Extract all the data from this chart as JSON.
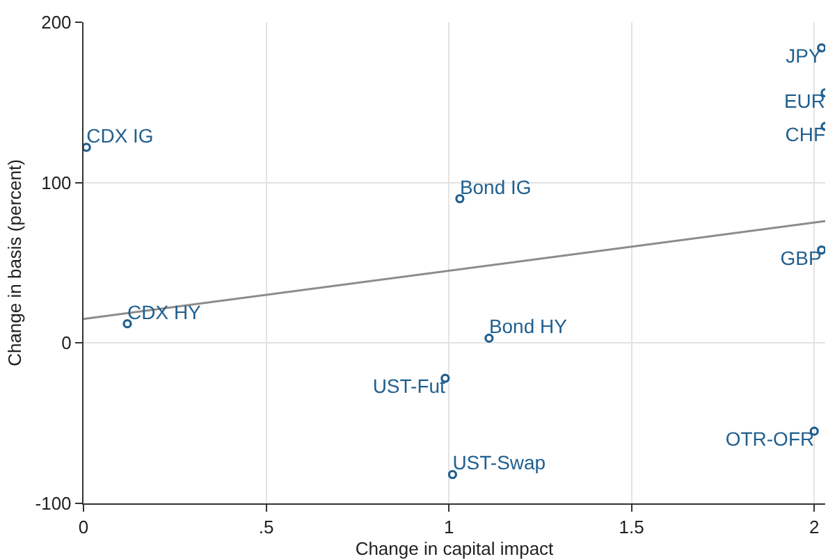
{
  "chart_data": {
    "type": "scatter",
    "xlabel": "Change in capital impact",
    "ylabel": "Change in basis (percent)",
    "xlim": [
      0,
      2.03
    ],
    "ylim": [
      -100,
      200
    ],
    "xticks": [
      0,
      {
        "value": 0.5,
        "label": ".5"
      },
      1,
      1.5,
      2
    ],
    "yticks": [
      -100,
      0,
      100,
      200
    ],
    "grid": true,
    "marker": "circle",
    "series": [
      {
        "color": "#1f5f8f",
        "x": [
          0.008,
          0.12,
          1.03,
          1.11,
          0.99,
          1.01,
          2.02,
          2.03,
          2.03,
          2.02,
          2.0
        ],
        "values": [
          122,
          12,
          90,
          3,
          -22,
          -82,
          184,
          156,
          135,
          58,
          -55
        ]
      },
      {
        "type": "line",
        "color": "#8c8c8c",
        "marker": "none",
        "x": [
          0,
          2.03
        ],
        "values": [
          15,
          76
        ]
      }
    ],
    "annotations": [
      {
        "text": "CDX IG",
        "x": 0.008,
        "y": 122
      },
      {
        "text": "CDX HY",
        "x": 0.12,
        "y": 12
      },
      {
        "text": "Bond IG",
        "x": 1.03,
        "y": 90
      },
      {
        "text": "Bond HY",
        "x": 1.11,
        "y": 3
      },
      {
        "text": "UST-Fut",
        "x": 0.99,
        "y": -22
      },
      {
        "text": "UST-Swap",
        "x": 1.01,
        "y": -82
      },
      {
        "text": "JPY",
        "x": 2.02,
        "y": 184
      },
      {
        "text": "EUR",
        "x": 2.03,
        "y": 156
      },
      {
        "text": "CHF",
        "x": 2.03,
        "y": 135
      },
      {
        "text": "GBP",
        "x": 2.02,
        "y": 58
      },
      {
        "text": "OTR-OFR",
        "x": 2.0,
        "y": -55
      }
    ]
  }
}
